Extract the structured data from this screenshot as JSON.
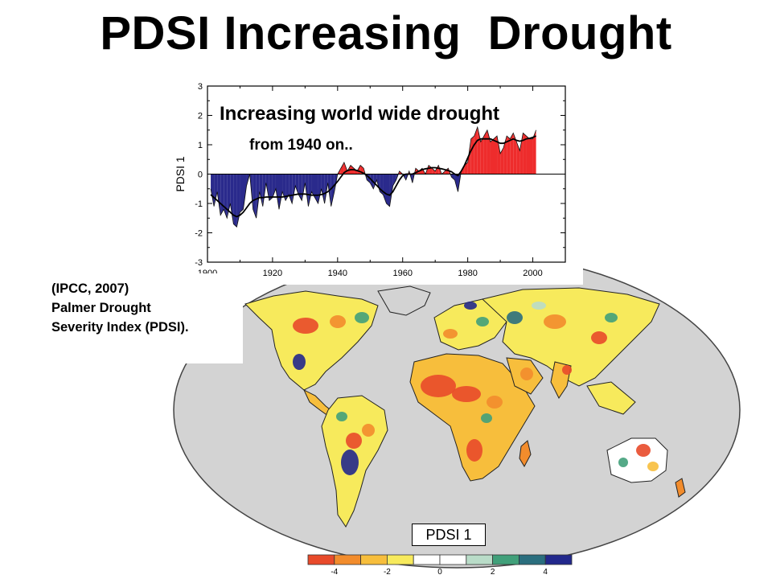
{
  "slide": {
    "title": "PDSI Increasing  Drought",
    "caption": [
      "(IPCC, 2007)",
      "Palmer Drought",
      "Severity Index (PDSI)."
    ]
  },
  "chart_data": [
    {
      "type": "area",
      "annotations": [
        "Increasing world wide drought",
        "from 1940 on.."
      ],
      "xlabel": "",
      "ylabel": "PDSI 1",
      "xlim": [
        1900,
        2010
      ],
      "ylim": [
        -3,
        3
      ],
      "x_ticks": [
        1900,
        1920,
        1940,
        1960,
        1980,
        2000
      ],
      "y_ticks": [
        3,
        2,
        1,
        0,
        -1,
        -2,
        -3
      ],
      "grid": false,
      "positive_color": "#ee2c2c",
      "negative_color": "#2a2a8c",
      "series": [
        {
          "x": [
            1901,
            1902,
            1903,
            1904,
            1905,
            1906,
            1907,
            1908,
            1909,
            1910,
            1911,
            1912,
            1913,
            1914,
            1915,
            1916,
            1917,
            1918,
            1919,
            1920,
            1921,
            1922,
            1923,
            1924,
            1925,
            1926,
            1927,
            1928,
            1929,
            1930,
            1931,
            1932,
            1933,
            1934,
            1935,
            1936,
            1937,
            1938,
            1939,
            1940,
            1941,
            1942,
            1943,
            1944,
            1945,
            1946,
            1947,
            1948,
            1949,
            1950,
            1951,
            1952,
            1953,
            1954,
            1955,
            1956,
            1957,
            1958,
            1959,
            1960,
            1961,
            1962,
            1963,
            1964,
            1965,
            1966,
            1967,
            1968,
            1969,
            1970,
            1971,
            1972,
            1973,
            1974,
            1975,
            1976,
            1977,
            1978,
            1979,
            1980,
            1981,
            1982,
            1983,
            1984,
            1985,
            1986,
            1987,
            1988,
            1989,
            1990,
            1991,
            1992,
            1993,
            1994,
            1995,
            1996,
            1997,
            1998,
            1999,
            2000,
            2001
          ],
          "values": [
            -0.5,
            -1.1,
            -0.6,
            -1.4,
            -1.2,
            -1.5,
            -1.0,
            -1.7,
            -1.8,
            -1.3,
            -1.2,
            -0.4,
            0.0,
            -1.2,
            -1.5,
            -0.6,
            -1.1,
            -0.3,
            -0.9,
            -0.8,
            -0.5,
            -1.2,
            -0.6,
            -0.9,
            -0.7,
            -1.0,
            -0.4,
            -0.7,
            -0.9,
            -0.3,
            -1.1,
            -0.6,
            -0.8,
            -1.0,
            -0.5,
            -1.0,
            -0.3,
            -1.1,
            -0.6,
            0.0,
            0.2,
            0.4,
            0.1,
            0.3,
            0.2,
            0.1,
            0.3,
            0.2,
            -0.2,
            -0.3,
            -0.5,
            -0.2,
            -0.6,
            -0.7,
            -1.0,
            -1.1,
            -0.4,
            -0.2,
            0.1,
            0.0,
            -0.2,
            0.1,
            -0.3,
            0.2,
            0.1,
            0.2,
            0.0,
            0.3,
            0.2,
            0.1,
            0.3,
            0.0,
            0.1,
            0.2,
            -0.1,
            -0.2,
            -0.6,
            0.1,
            0.3,
            0.4,
            1.2,
            1.3,
            1.6,
            1.1,
            1.3,
            1.5,
            1.1,
            1.2,
            1.3,
            0.7,
            0.9,
            1.3,
            1.2,
            1.4,
            1.1,
            0.8,
            1.4,
            1.3,
            1.2,
            1.2,
            1.5
          ],
          "smooth": [
            -0.7,
            -0.8,
            -0.9,
            -1.0,
            -1.1,
            -1.2,
            -1.3,
            -1.4,
            -1.45,
            -1.4,
            -1.3,
            -1.15,
            -1.0,
            -0.9,
            -0.85,
            -0.8,
            -0.8,
            -0.78,
            -0.78,
            -0.78,
            -0.78,
            -0.78,
            -0.78,
            -0.76,
            -0.74,
            -0.72,
            -0.7,
            -0.68,
            -0.68,
            -0.68,
            -0.7,
            -0.72,
            -0.72,
            -0.72,
            -0.7,
            -0.66,
            -0.6,
            -0.5,
            -0.38,
            -0.25,
            -0.1,
            0.05,
            0.12,
            0.15,
            0.15,
            0.12,
            0.08,
            0.03,
            -0.05,
            -0.15,
            -0.27,
            -0.38,
            -0.5,
            -0.6,
            -0.68,
            -0.72,
            -0.6,
            -0.4,
            -0.2,
            -0.05,
            0.0,
            0.0,
            0.0,
            0.05,
            0.1,
            0.15,
            0.18,
            0.2,
            0.22,
            0.22,
            0.2,
            0.18,
            0.15,
            0.12,
            0.08,
            0.0,
            -0.05,
            0.1,
            0.3,
            0.55,
            0.8,
            1.0,
            1.15,
            1.2,
            1.2,
            1.2,
            1.2,
            1.15,
            1.1,
            1.05,
            1.05,
            1.1,
            1.15,
            1.2,
            1.15,
            1.12,
            1.15,
            1.2,
            1.22,
            1.25,
            1.3
          ]
        }
      ]
    },
    {
      "type": "heatmap",
      "title": "PDSI 1",
      "legend_ticks": [
        "-4",
        "-2",
        "0",
        "2",
        "4"
      ],
      "legend_colors": [
        "#e84a2a",
        "#f28c2c",
        "#f7be3c",
        "#f7ea5c",
        "#ffffff",
        "#ffffff",
        "#b9dcc8",
        "#41a07a",
        "#2a6e7e",
        "#22288c"
      ],
      "land_color": "#d3d3d3",
      "ocean_color": "#ffffff"
    }
  ]
}
